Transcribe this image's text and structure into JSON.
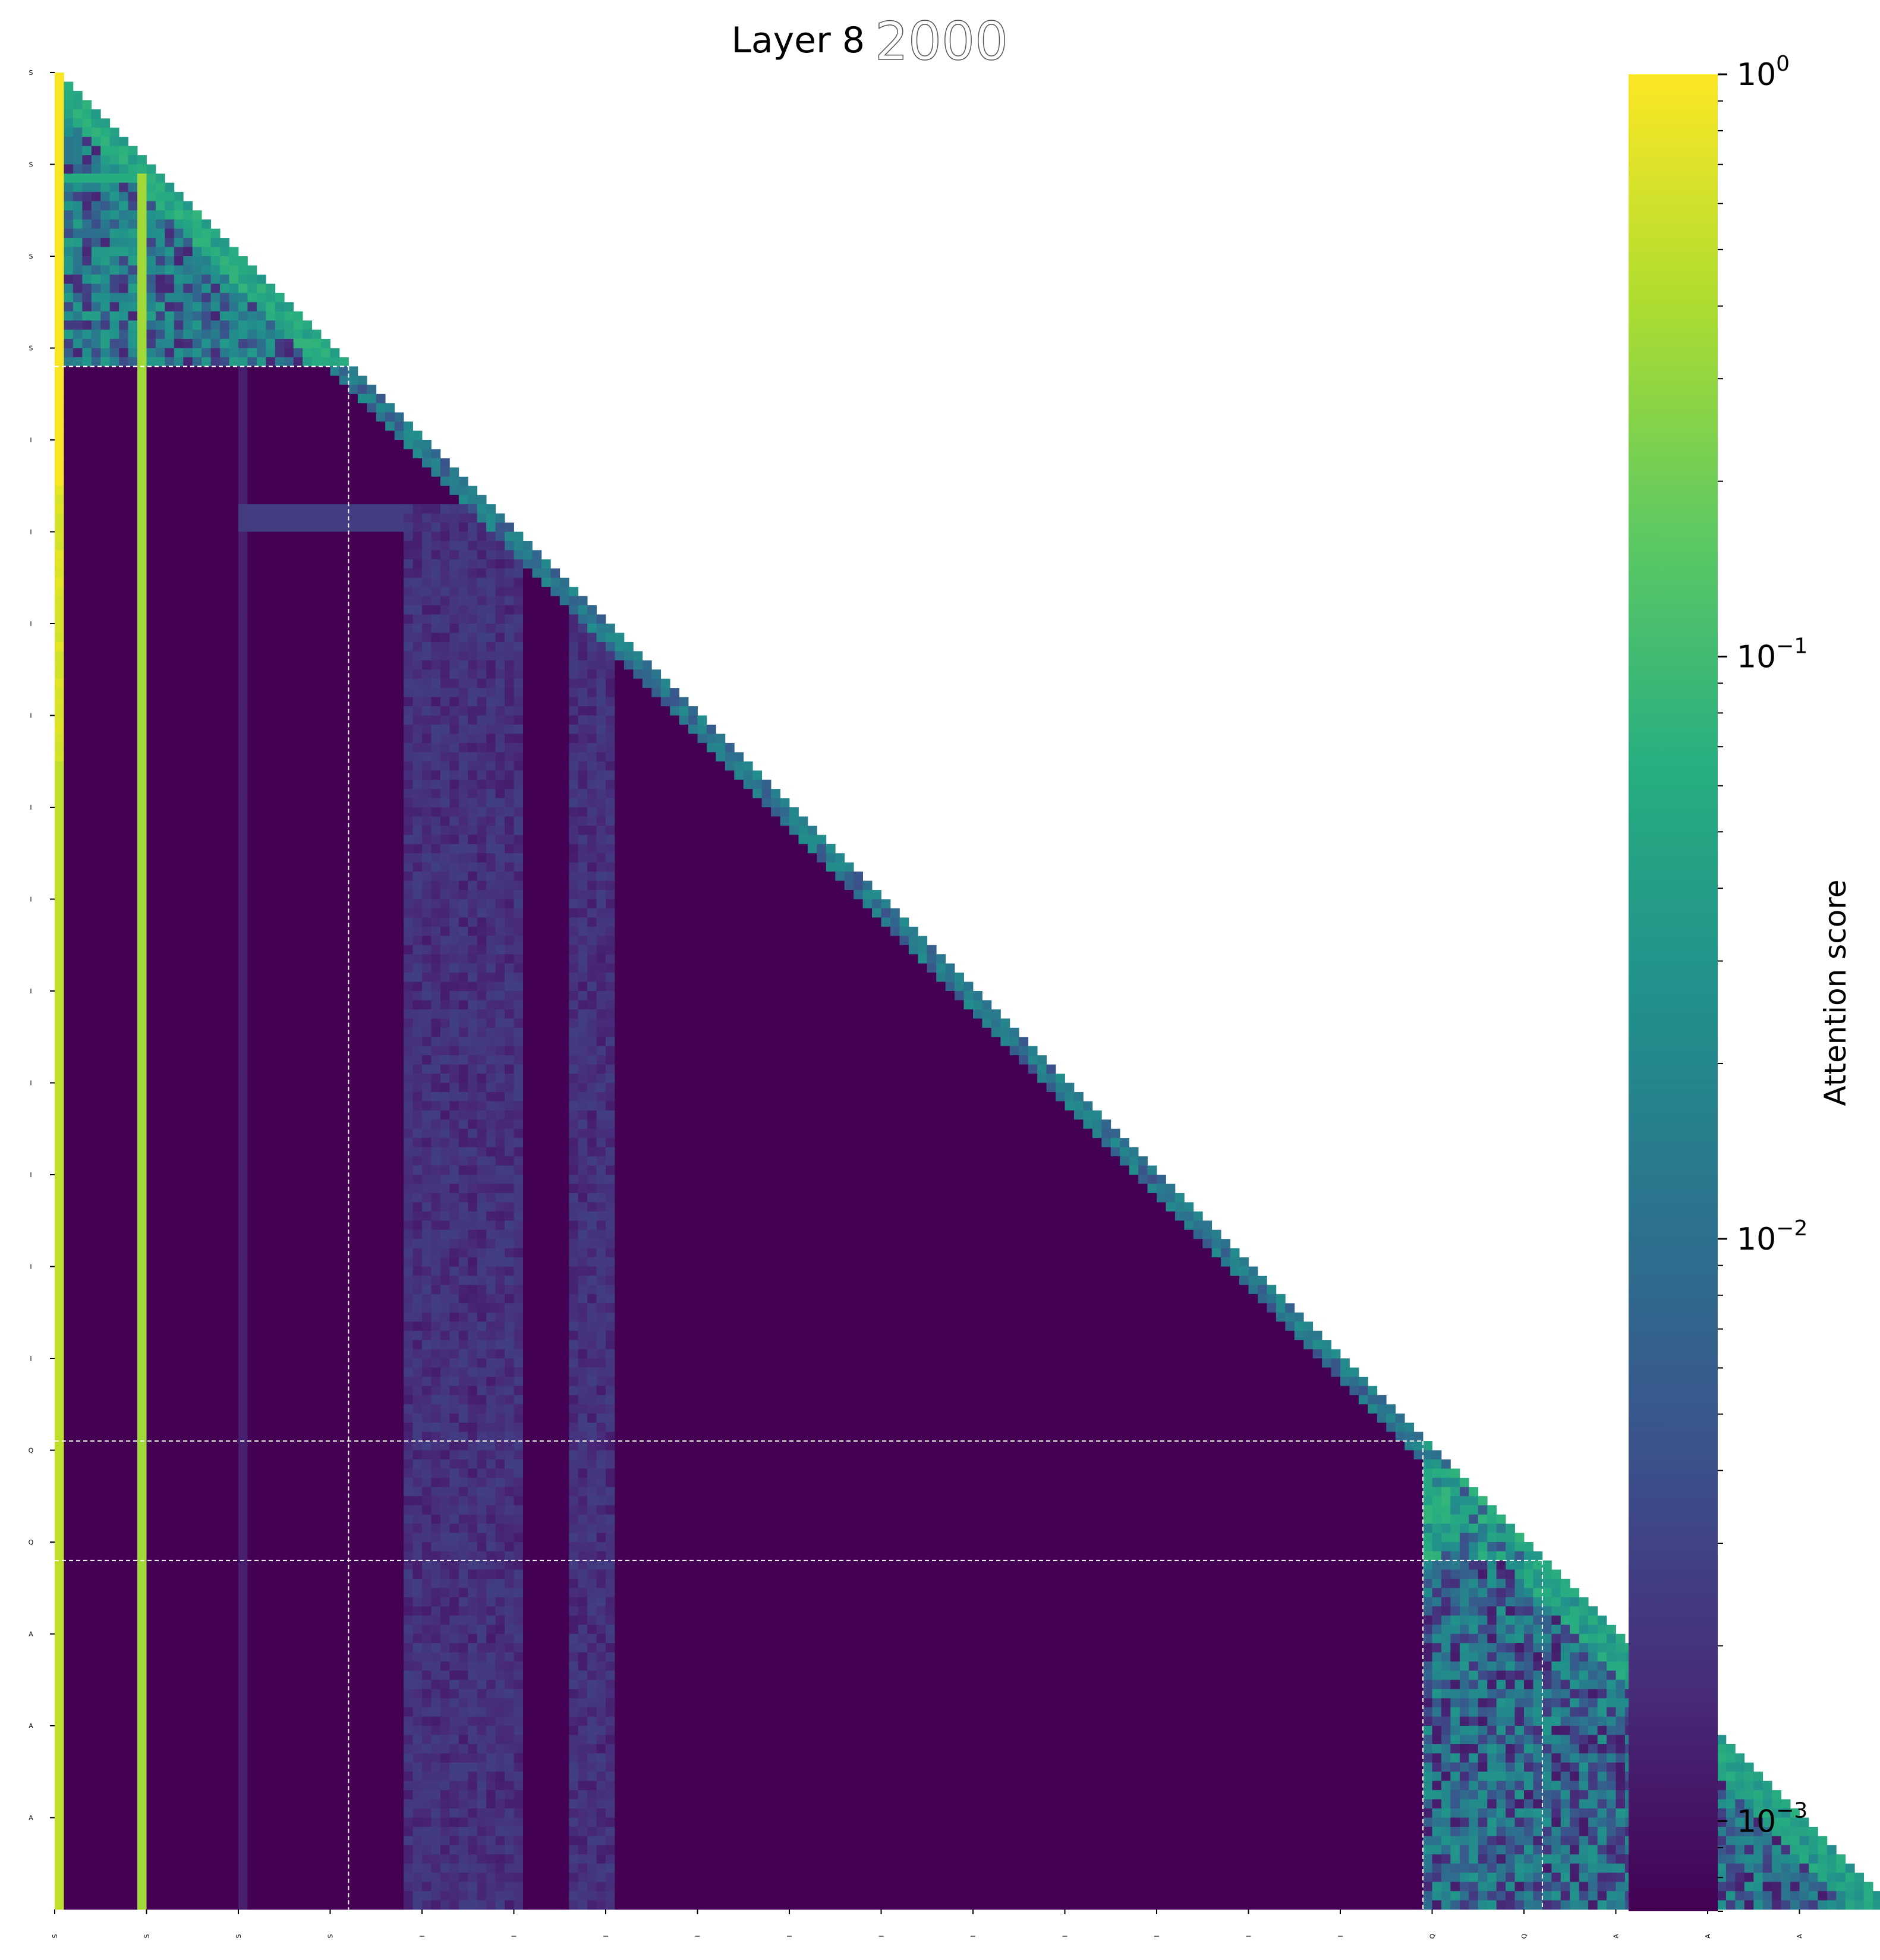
{
  "chart_data": {
    "type": "heatmap",
    "title": "Layer 8",
    "title_suffix": "2000",
    "colorbar": {
      "label": "Attention score",
      "scale": "log",
      "range": [
        0.0007,
        1.0
      ],
      "tick_labels": [
        {
          "base": "10",
          "exp": "0"
        },
        {
          "base": "10",
          "exp": "−1"
        },
        {
          "base": "10",
          "exp": "−2"
        },
        {
          "base": "10",
          "exp": "−3"
        }
      ],
      "tick_values": [
        1.0,
        0.1,
        0.01,
        0.001
      ],
      "colormap": "viridis"
    },
    "mask": "upper-triangle (causal)",
    "n_tokens": 200,
    "row_tick_labels": [
      "S",
      "S",
      "S",
      "S",
      "I",
      "I",
      "I",
      "I",
      "I",
      "I",
      "I",
      "I",
      "I",
      "I",
      "I",
      "Q",
      "Q",
      "A",
      "A",
      "A"
    ],
    "col_tick_labels": [
      "S",
      "S",
      "S",
      "S",
      "I",
      "I",
      "I",
      "I",
      "I",
      "I",
      "I",
      "I",
      "I",
      "I",
      "I",
      "Q",
      "Q",
      "A",
      "A",
      "A"
    ],
    "segments": [
      {
        "name": "S",
        "start": 0,
        "end": 32
      },
      {
        "name": "I",
        "start": 32,
        "end": 149
      },
      {
        "name": "Q",
        "start": 149,
        "end": 162
      },
      {
        "name": "A",
        "start": 162,
        "end": 200
      }
    ],
    "segment_boundaries": [
      32,
      149,
      162
    ],
    "dominant_columns": [
      {
        "col": 0,
        "value": 0.5
      },
      {
        "col": 9,
        "value": 0.35
      }
    ],
    "background_value": 0.0007,
    "grid": false
  }
}
